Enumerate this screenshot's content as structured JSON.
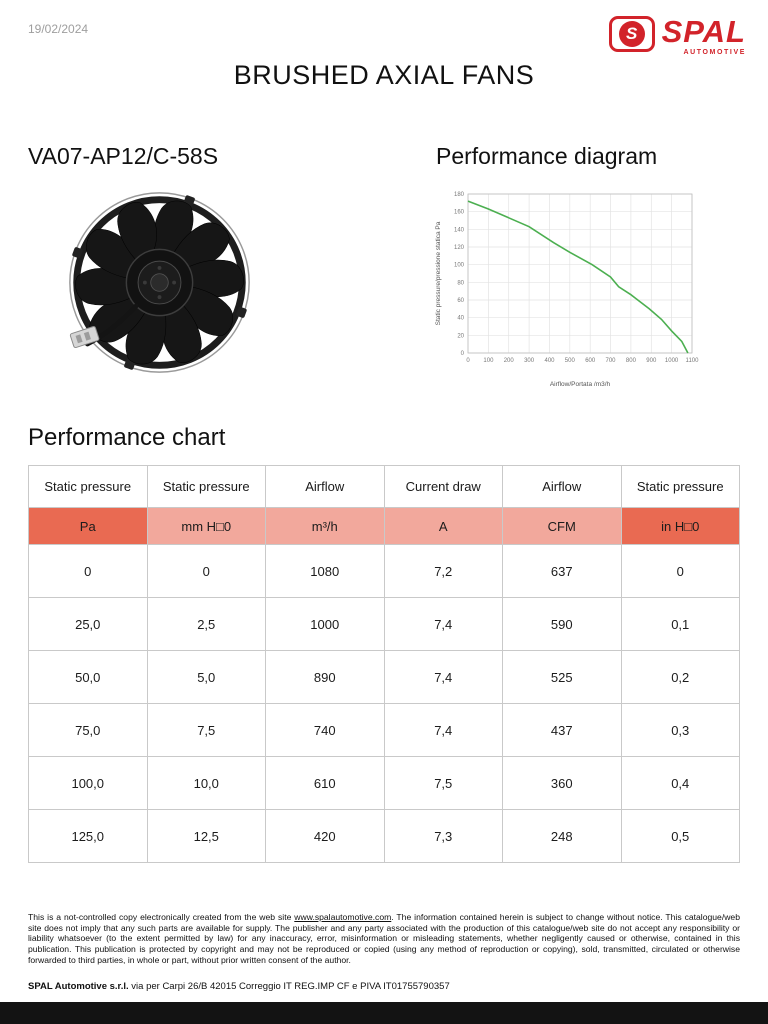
{
  "page": {
    "date": "19/02/2024",
    "title": "BRUSHED AXIAL FANS"
  },
  "logo": {
    "brand": "SPAL",
    "sub": "AUTOMOTIVE",
    "icon": "spal-s-badge",
    "color": "#d2232a",
    "initial": "S"
  },
  "product": {
    "model": "VA07-AP12/C-58S"
  },
  "diagram": {
    "heading": "Performance diagram"
  },
  "chart_data": {
    "type": "line",
    "title": "Performance diagram",
    "xlabel": "Airflow/Portata /m3/h",
    "ylabel": "Static pressure/pressione statica Pa",
    "xlim": [
      0,
      1100
    ],
    "ylim": [
      0,
      180
    ],
    "x_ticks": [
      0,
      100,
      200,
      300,
      400,
      500,
      600,
      700,
      800,
      900,
      1000,
      1100
    ],
    "y_ticks": [
      0,
      20,
      40,
      60,
      80,
      100,
      120,
      140,
      160,
      180
    ],
    "grid": true,
    "legend": false,
    "series": [
      {
        "name": "static pressure vs airflow",
        "color": "#4caf50",
        "points": [
          [
            0,
            172
          ],
          [
            100,
            163
          ],
          [
            200,
            153
          ],
          [
            300,
            143
          ],
          [
            420,
            125
          ],
          [
            500,
            114
          ],
          [
            610,
            100
          ],
          [
            700,
            86
          ],
          [
            740,
            75
          ],
          [
            800,
            66
          ],
          [
            890,
            50
          ],
          [
            950,
            38
          ],
          [
            1000,
            25
          ],
          [
            1050,
            13
          ],
          [
            1080,
            0
          ]
        ]
      }
    ]
  },
  "table": {
    "heading": "Performance chart",
    "columns": [
      "Static pressure",
      "Static pressure",
      "Airflow",
      "Current draw",
      "Airflow",
      "Static pressure"
    ],
    "units": [
      "Pa",
      "mm H□0",
      "m³/h",
      "A",
      "CFM",
      "in H□0"
    ],
    "unit_colors": [
      "#e96a52",
      "#f2a89c",
      "#f2a89c",
      "#f2a89c",
      "#f2a89c",
      "#e96a52"
    ],
    "rows": [
      [
        "0",
        "0",
        "1080",
        "7,2",
        "637",
        "0"
      ],
      [
        "25,0",
        "2,5",
        "1000",
        "7,4",
        "590",
        "0,1"
      ],
      [
        "50,0",
        "5,0",
        "890",
        "7,4",
        "525",
        "0,2"
      ],
      [
        "75,0",
        "7,5",
        "740",
        "7,4",
        "437",
        "0,3"
      ],
      [
        "100,0",
        "10,0",
        "610",
        "7,5",
        "360",
        "0,4"
      ],
      [
        "125,0",
        "12,5",
        "420",
        "7,3",
        "248",
        "0,5"
      ]
    ]
  },
  "footer": {
    "disclaimer_pre": "This is a not-controlled copy electronically created from the web site ",
    "link": "www.spalautomotive.com",
    "disclaimer_post": ". The information contained herein is subject to change without notice. This catalogue/web site does not imply that any such parts are available for supply. The publisher and any party associated with the production of this catalogue/web site do not accept any responsibility or liability whatsoever (to the extent permitted by law) for any inaccuracy, error, misinformation or misleading statements, whether negligently caused or otherwise, contained in this publication. This publication is protected by copyright and may not be reproduced or copied (using any method of reproduction or copying), sold, transmitted, circulated or otherwise forwarded to third parties, in whole or part, without prior written consent of the author.",
    "company_bold": "SPAL Automotive s.r.l.",
    "company_rest": " via per Carpi 26/B 42015 Correggio IT  REG.IMP CF e PIVA  IT01755790357"
  }
}
